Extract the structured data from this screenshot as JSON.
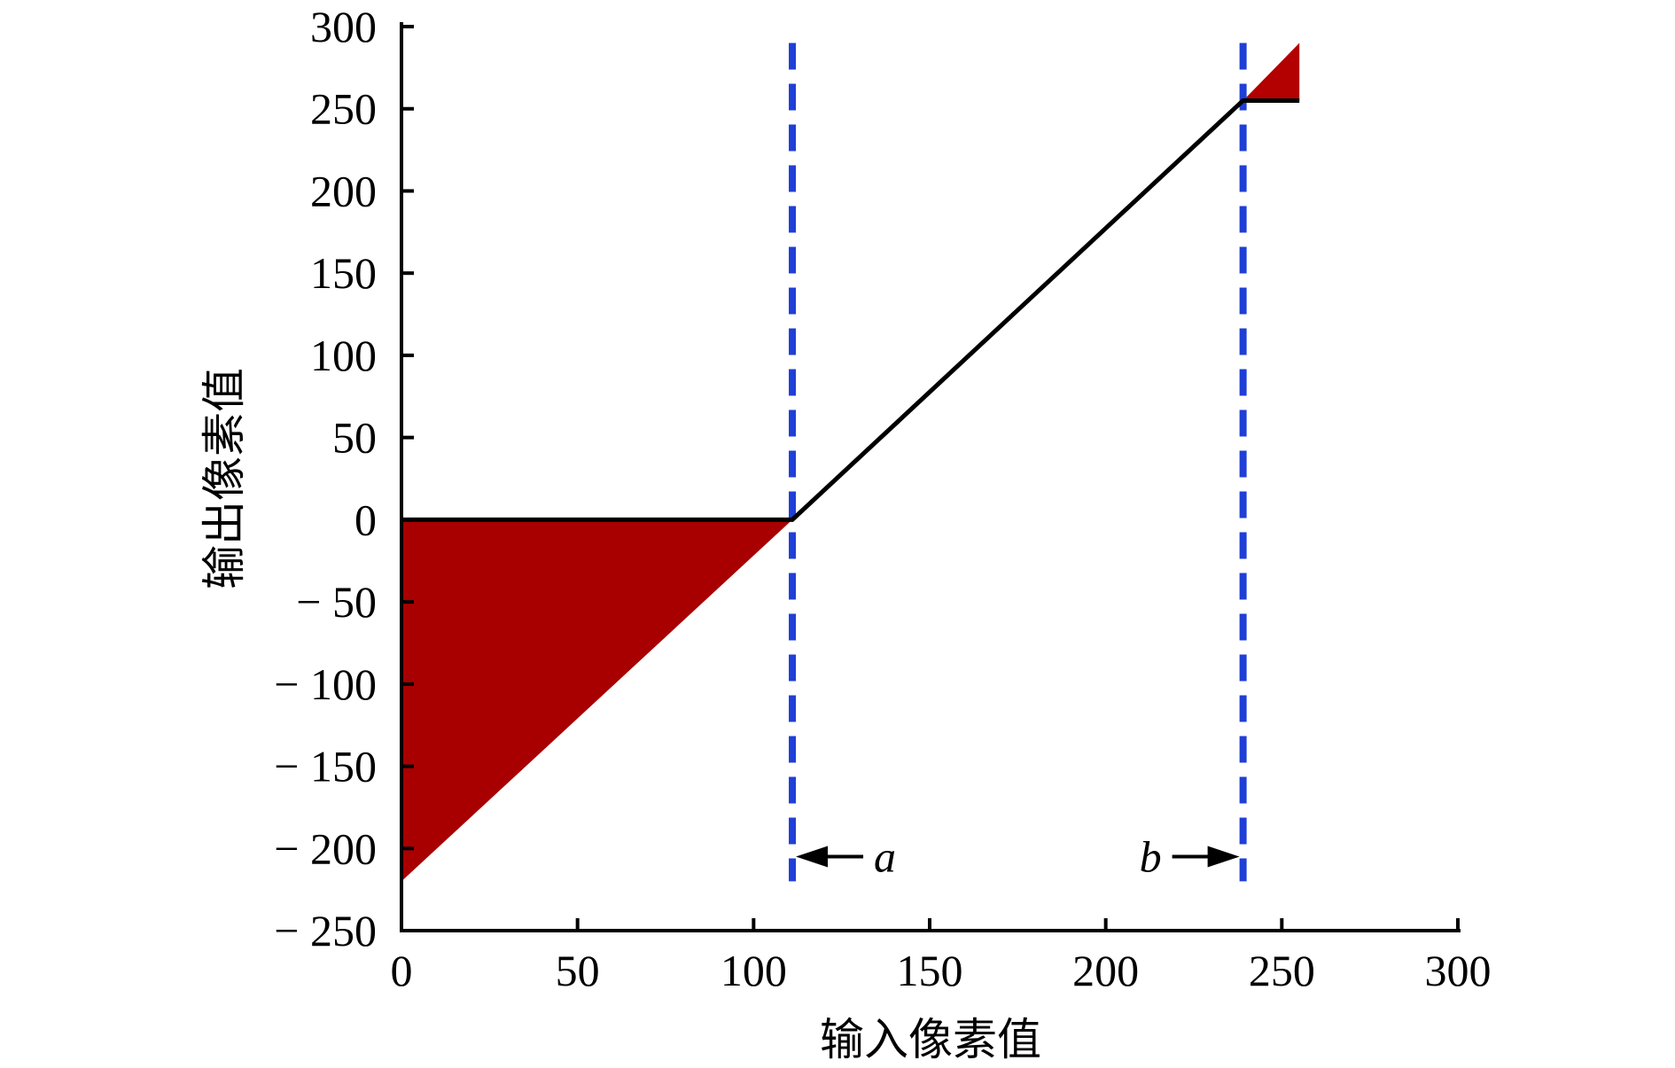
{
  "chart_data": {
    "type": "line",
    "title": "",
    "xlabel": "输入像素值",
    "ylabel": "输出像素值",
    "xlim": [
      0,
      300
    ],
    "ylim": [
      -250,
      300
    ],
    "x_ticks": [
      0,
      50,
      100,
      150,
      200,
      250,
      300
    ],
    "y_ticks": [
      300,
      250,
      200,
      150,
      100,
      50,
      0,
      -50,
      -100,
      -150,
      -200,
      -250
    ],
    "y_tick_labels": [
      "300",
      "250",
      "200",
      "150",
      "100",
      "50",
      "0",
      "− 50",
      "− 100",
      "− 150",
      "− 200",
      "− 250"
    ],
    "grid": false,
    "series": [
      {
        "x": [
          0,
          111,
          239,
          255
        ],
        "y": [
          0,
          0,
          255,
          255
        ]
      }
    ],
    "shaded_regions": [
      {
        "points": [
          [
            0,
            0
          ],
          [
            111,
            0
          ],
          [
            0,
            -220
          ]
        ],
        "color": "#a80000"
      },
      {
        "points": [
          [
            239,
            255
          ],
          [
            255,
            255
          ],
          [
            255,
            290
          ]
        ],
        "color": "#b30000"
      }
    ],
    "vlines": [
      {
        "x": 111,
        "label": "a",
        "arrow": "left",
        "color": "#1f3fd6",
        "style": "dashed"
      },
      {
        "x": 239,
        "label": "b",
        "arrow": "right",
        "color": "#1f3fd6",
        "style": "dashed"
      }
    ],
    "line_color": "#000000"
  }
}
